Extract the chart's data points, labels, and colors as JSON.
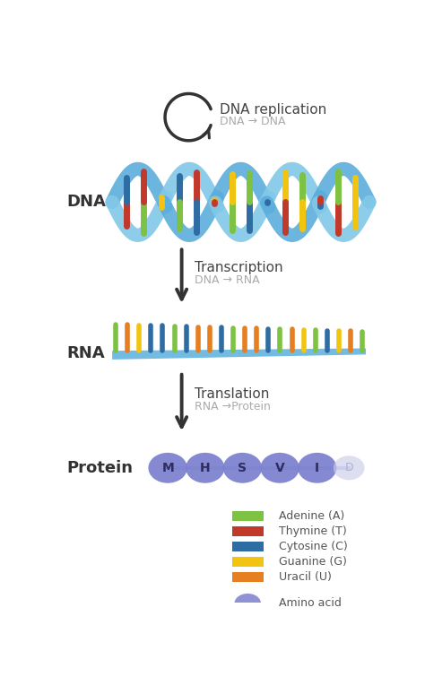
{
  "bg_color": "#ffffff",
  "dna_replication_label": "DNA replication",
  "dna_replication_sublabel": "DNA → DNA",
  "transcription_label": "Transcription",
  "transcription_sublabel": "DNA → RNA",
  "translation_label": "Translation",
  "translation_sublabel": "RNA →Protein",
  "dna_section_label": "DNA",
  "rna_section_label": "RNA",
  "protein_section_label": "Protein",
  "strand_color": "#5baddc",
  "strand_color2": "#82c8e8",
  "dna_bar_colors": [
    "#c0392b",
    "#7dc242",
    "#f1c40f",
    "#2e6da4",
    "#c0392b",
    "#f1c40f",
    "#7dc242",
    "#2e6da4",
    "#c0392b",
    "#f1c40f",
    "#7dc242",
    "#2e6da4",
    "#c0392b",
    "#f1c40f"
  ],
  "rna_bar_colors": [
    "#7dc242",
    "#e67e22",
    "#f1c40f",
    "#2e6da4",
    "#2e6da4",
    "#7dc242",
    "#2e6da4",
    "#e67e22",
    "#e67e22",
    "#2e6da4",
    "#7dc242",
    "#e67e22",
    "#e67e22",
    "#2e6da4",
    "#7dc242",
    "#e67e22",
    "#f1c40f",
    "#7dc242",
    "#2e6da4",
    "#f1c40f",
    "#e67e22",
    "#7dc242"
  ],
  "rna_base_color": "#4a90c4",
  "protein_color": "#7b7fce",
  "protein_faded": "#cccee8",
  "protein_amino_acids": [
    "M",
    "H",
    "S",
    "V",
    "I"
  ],
  "legend_items": [
    {
      "label": "Adenine (A)",
      "color": "#7dc242",
      "type": "rect"
    },
    {
      "label": "Thymine (T)",
      "color": "#c0392b",
      "type": "rect"
    },
    {
      "label": "Cytosine (C)",
      "color": "#2e6da4",
      "type": "rect"
    },
    {
      "label": "Guanine (G)",
      "color": "#f1c40f",
      "type": "rect"
    },
    {
      "label": "Uracil (U)",
      "color": "#e67e22",
      "type": "rect"
    },
    {
      "label": "Amino acid",
      "color": "#7b7fce",
      "type": "circle"
    }
  ]
}
